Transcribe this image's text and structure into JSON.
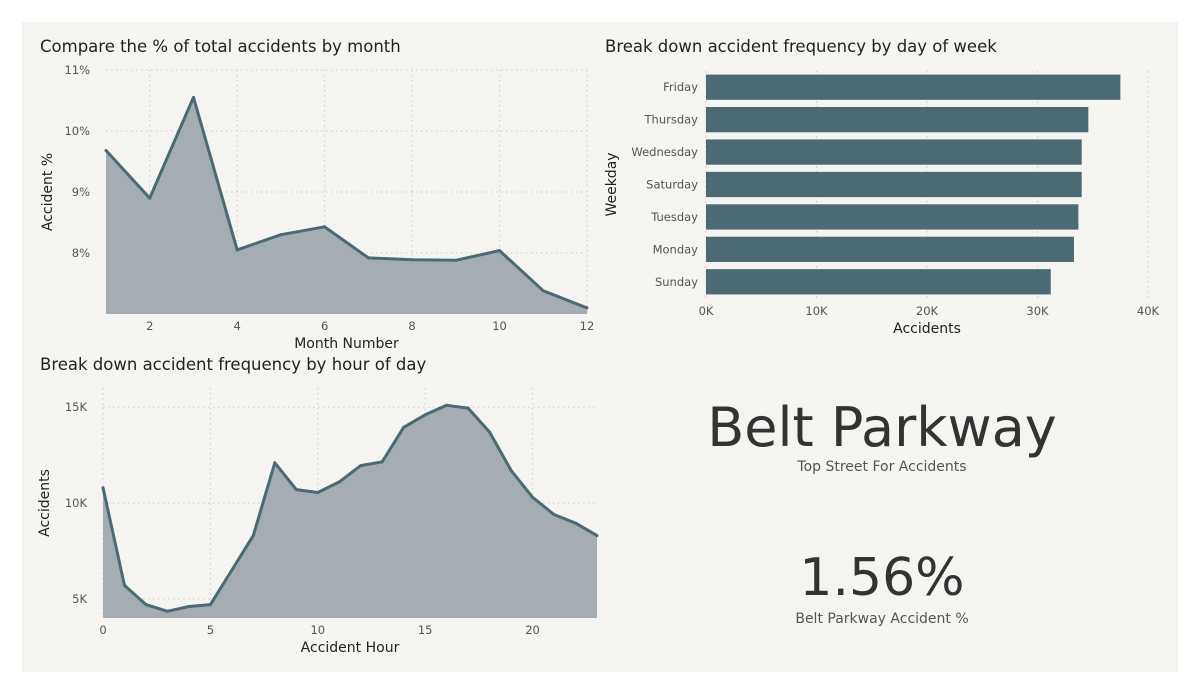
{
  "chart_data": [
    {
      "type": "area",
      "title": "Compare the % of total accidents by month",
      "xlabel": "Month Number",
      "ylabel": "Accident %",
      "x": [
        1,
        2,
        3,
        4,
        5,
        6,
        7,
        8,
        9,
        10,
        11,
        12
      ],
      "values": [
        9.68,
        8.9,
        10.55,
        8.05,
        8.3,
        8.43,
        7.92,
        7.89,
        7.88,
        8.04,
        7.38,
        7.1
      ],
      "xlim": [
        1,
        12
      ],
      "ylim": [
        7.0,
        11.0
      ],
      "xticks": [
        2,
        4,
        6,
        8,
        10,
        12
      ],
      "yticks": [
        8,
        9,
        10,
        11
      ],
      "ytick_labels": [
        "8%",
        "9%",
        "10%",
        "11%"
      ],
      "color": "#4b6a74",
      "fill": "#a5adb3"
    },
    {
      "type": "bar",
      "orientation": "horizontal",
      "title": "Break down accident frequency by day of week",
      "xlabel": "Accidents",
      "ylabel": "Weekday",
      "categories": [
        "Friday",
        "Thursday",
        "Wednesday",
        "Saturday",
        "Tuesday",
        "Monday",
        "Sunday"
      ],
      "values": [
        37500,
        34600,
        34000,
        34000,
        33700,
        33300,
        31200
      ],
      "xlim": [
        0,
        40000
      ],
      "xticks": [
        0,
        10000,
        20000,
        30000,
        40000
      ],
      "xtick_labels": [
        "0K",
        "10K",
        "20K",
        "30K",
        "40K"
      ],
      "color": "#4b6a74"
    },
    {
      "type": "area",
      "title": "Break down accident frequency by hour of day",
      "xlabel": "Accident Hour",
      "ylabel": "Accidents",
      "x": [
        0,
        1,
        2,
        3,
        4,
        5,
        6,
        7,
        8,
        9,
        10,
        11,
        12,
        13,
        14,
        15,
        16,
        17,
        18,
        19,
        20,
        21,
        22,
        23
      ],
      "values": [
        10800,
        5700,
        4700,
        4350,
        4600,
        4700,
        6500,
        8300,
        12100,
        10700,
        10550,
        11100,
        11950,
        12150,
        13950,
        14600,
        15100,
        14950,
        13700,
        11700,
        10300,
        9400,
        8950,
        8300
      ],
      "xlim": [
        0,
        23
      ],
      "ylim": [
        4000,
        16000
      ],
      "xticks": [
        0,
        5,
        10,
        15,
        20
      ],
      "yticks": [
        5000,
        10000,
        15000
      ],
      "ytick_labels": [
        "5K",
        "10K",
        "15K"
      ],
      "color": "#4b6a74",
      "fill": "#a5adb3"
    }
  ],
  "kpi": [
    {
      "value": "Belt Parkway",
      "label": "Top Street For Accidents"
    },
    {
      "value": "1.56%",
      "label": "Belt Parkway Accident %"
    }
  ]
}
